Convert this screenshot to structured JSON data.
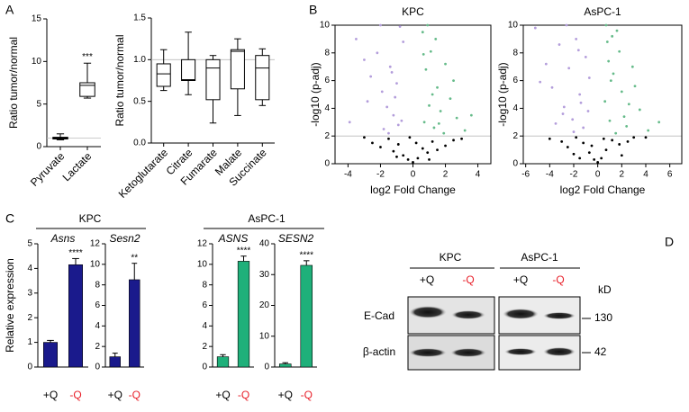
{
  "panels": [
    "A",
    "B",
    "C",
    "D"
  ],
  "chart_data": [
    {
      "type": "box",
      "ylabel": "Ratio tumor/normal",
      "categories": [
        "Pyruvate",
        "Lactate"
      ],
      "boxes": [
        {
          "min": 0.8,
          "q1": 0.9,
          "median": 1.0,
          "q3": 1.1,
          "max": 1.5
        },
        {
          "min": 5.7,
          "q1": 5.9,
          "median": 7.2,
          "q3": 7.5,
          "max": 9.8
        }
      ],
      "significance": [
        null,
        "***"
      ],
      "hline": 1,
      "ylim": [
        0,
        15
      ],
      "yticks": [
        0,
        5,
        10,
        15
      ]
    },
    {
      "type": "box",
      "ylabel": "Ratio tumor/normal",
      "categories": [
        "Ketoglutarate",
        "Citrate",
        "Fumarate",
        "Malate",
        "Succinate"
      ],
      "boxes": [
        {
          "min": 0.63,
          "q1": 0.68,
          "median": 0.83,
          "q3": 0.95,
          "max": 1.12
        },
        {
          "min": 0.58,
          "q1": 0.75,
          "median": 0.76,
          "q3": 1.0,
          "max": 1.33
        },
        {
          "min": 0.24,
          "q1": 0.52,
          "median": 0.9,
          "q3": 1.0,
          "max": 1.05
        },
        {
          "min": 0.33,
          "q1": 0.65,
          "median": 1.1,
          "q3": 1.12,
          "max": 1.25
        },
        {
          "min": 0.45,
          "q1": 0.52,
          "median": 0.9,
          "q3": 1.05,
          "max": 1.13
        }
      ],
      "hline": 1,
      "ylim": [
        0,
        1.5
      ],
      "yticks": [
        {
          "value": 0,
          "label": "0.0"
        },
        0.5,
        {
          "value": 1,
          "label": "1.0"
        },
        1.5
      ]
    },
    {
      "type": "scatter",
      "title": "KPC",
      "xlabel": "log2 Fold Change",
      "ylabel": "-log10 (p-adj)",
      "xlim": [
        -4.8,
        4.8
      ],
      "xticks": [
        -4,
        -2,
        0,
        2,
        4
      ],
      "ylim": [
        0,
        10
      ],
      "yticks": [
        0,
        2,
        4,
        6,
        8,
        10
      ],
      "hline": 2,
      "series": [
        {
          "color": "#000000",
          "x": [
            -2.5,
            -2.0,
            -1.5,
            -1.2,
            -0.9,
            -0.6,
            -0.3,
            0,
            0.3,
            0.6,
            0.9,
            1.2,
            1.5,
            2.0,
            2.5,
            -0.2,
            0.2,
            -1.0,
            1.0,
            -3.0,
            3.0
          ],
          "y": [
            1.5,
            1.2,
            1.8,
            0.9,
            1.4,
            0.6,
            0.3,
            0.1,
            0.4,
            1.1,
            0.8,
            1.6,
            1.0,
            1.3,
            1.7,
            1.9,
            1.5,
            0.5,
            0.3,
            1.9,
            1.8
          ]
        },
        {
          "color": "#b39ddb",
          "x": [
            -3.5,
            -3.0,
            -2.6,
            -2.2,
            -1.9,
            -1.6,
            -1.4,
            -1.2,
            -1.0,
            -0.9,
            -0.8,
            -0.7,
            -2.8,
            -1.8,
            -1.3,
            -0.6,
            -2.0,
            -1.5,
            -3.9,
            -1.1
          ],
          "y": [
            9.0,
            7.5,
            6.3,
            8.0,
            5.2,
            4.1,
            7.0,
            3.5,
            5.8,
            2.8,
            9.9,
            3.1,
            4.5,
            2.5,
            6.6,
            8.8,
            10,
            2.2,
            3.0,
            4.8
          ]
        },
        {
          "color": "#66bb8a",
          "x": [
            0.6,
            0.7,
            0.8,
            1.0,
            1.1,
            1.3,
            1.5,
            1.7,
            2.0,
            2.3,
            2.7,
            3.2,
            0.9,
            1.2,
            1.6,
            2.5,
            0.65,
            1.9,
            3.6,
            1.4
          ],
          "y": [
            9.5,
            3.0,
            6.8,
            4.2,
            8.1,
            2.6,
            5.5,
            3.8,
            7.2,
            4.7,
            3.3,
            2.4,
            10,
            5.0,
            2.9,
            6.0,
            7.9,
            2.2,
            3.5,
            9.0
          ]
        }
      ]
    },
    {
      "type": "scatter",
      "title": "AsPC-1",
      "xlabel": "log2 Fold Change",
      "ylabel": "-log10 (p-adj)",
      "xlim": [
        -6.2,
        7
      ],
      "xticks": [
        -6,
        -4,
        -2,
        0,
        2,
        4,
        6
      ],
      "ylim": [
        0,
        10
      ],
      "yticks": [
        0,
        2,
        4,
        6,
        8,
        10
      ],
      "hline": 2,
      "series": [
        {
          "color": "#000000",
          "x": [
            -4.0,
            -3.0,
            -2.5,
            -1.8,
            -1.2,
            -0.7,
            -0.3,
            0,
            0.3,
            0.7,
            1.2,
            1.8,
            2.5,
            3.0,
            -2.0,
            2.0,
            -0.5,
            0.5,
            4.0,
            -1.5
          ],
          "y": [
            1.8,
            1.6,
            1.2,
            1.9,
            1.5,
            0.8,
            0.3,
            0.1,
            0.4,
            1.0,
            1.7,
            1.4,
            1.6,
            1.9,
            0.7,
            0.6,
            1.3,
            1.8,
            1.9,
            0.4
          ]
        },
        {
          "color": "#b39ddb",
          "x": [
            -5.2,
            -4.3,
            -3.8,
            -3.2,
            -2.8,
            -2.4,
            -2.1,
            -1.8,
            -1.5,
            -1.2,
            -1.0,
            -0.8,
            -3.5,
            -2.6,
            -1.4,
            -0.7,
            -2.0,
            -4.8,
            -1.6,
            -2.9
          ],
          "y": [
            9.8,
            7.2,
            5.5,
            8.6,
            4.1,
            6.9,
            3.2,
            9.0,
            5.0,
            2.6,
            7.7,
            3.8,
            2.9,
            10,
            4.4,
            6.2,
            2.3,
            5.9,
            8.2,
            3.6
          ]
        },
        {
          "color": "#66bb8a",
          "x": [
            0.6,
            0.8,
            1.0,
            1.3,
            1.6,
            2.0,
            2.4,
            2.9,
            3.5,
            4.2,
            0.7,
            1.1,
            1.8,
            2.6,
            5.1,
            1.5,
            0.9,
            3.1,
            2.2,
            1.2
          ],
          "y": [
            4.5,
            8.8,
            3.1,
            6.5,
            9.6,
            5.2,
            2.7,
            7.0,
            3.9,
            2.4,
            10,
            6.0,
            8.1,
            4.3,
            3.0,
            2.2,
            7.4,
            5.6,
            3.4,
            9.2
          ]
        }
      ]
    },
    {
      "type": "bar",
      "title": "Asns",
      "ylabel": "Relative expression",
      "categories": [
        "+Q",
        "-Q"
      ],
      "category_colors": [
        "#000000",
        "#e8202a"
      ],
      "values": [
        1.0,
        4.15
      ],
      "errors": [
        0.08,
        0.25
      ],
      "significance": [
        null,
        "****"
      ],
      "color": "#1a1a8c",
      "ylim": [
        0,
        5
      ],
      "yticks": [
        0,
        1,
        2,
        3,
        4,
        5
      ]
    },
    {
      "type": "bar",
      "title": "Sesn2",
      "categories": [
        "+Q",
        "-Q"
      ],
      "category_colors": [
        "#000000",
        "#e8202a"
      ],
      "values": [
        1.0,
        8.5
      ],
      "errors": [
        0.35,
        1.6
      ],
      "significance": [
        null,
        "**"
      ],
      "color": "#1a1a8c",
      "ylim": [
        0,
        12
      ],
      "yticks": [
        0,
        2,
        4,
        6,
        8,
        10,
        12
      ]
    },
    {
      "type": "bar",
      "title": "ASNS",
      "categories": [
        "+Q",
        "-Q"
      ],
      "category_colors": [
        "#000000",
        "#e8202a"
      ],
      "values": [
        1.0,
        10.3
      ],
      "errors": [
        0.2,
        0.5
      ],
      "significance": [
        null,
        "****"
      ],
      "color": "#1fb07a",
      "ylim": [
        0,
        12
      ],
      "yticks": [
        0,
        2,
        4,
        6,
        8,
        10,
        12
      ]
    },
    {
      "type": "bar",
      "title": "SESN2",
      "categories": [
        "+Q",
        "-Q"
      ],
      "category_colors": [
        "#000000",
        "#e8202a"
      ],
      "values": [
        1.0,
        33
      ],
      "errors": [
        0.4,
        1.5
      ],
      "significance": [
        null,
        "****"
      ],
      "color": "#1fb07a",
      "ylim": [
        0,
        40
      ],
      "yticks": [
        0,
        10,
        20,
        30,
        40
      ]
    }
  ],
  "group_labels": [
    "KPC",
    "AsPC-1"
  ],
  "blot": {
    "groups": [
      "KPC",
      "AsPC-1"
    ],
    "lanes": [
      "+Q",
      "-Q",
      "+Q",
      "-Q"
    ],
    "unit": "kD",
    "rows": [
      {
        "label": "E-Cad",
        "size": "130"
      },
      {
        "label": "β-actin",
        "size": "42"
      }
    ]
  }
}
